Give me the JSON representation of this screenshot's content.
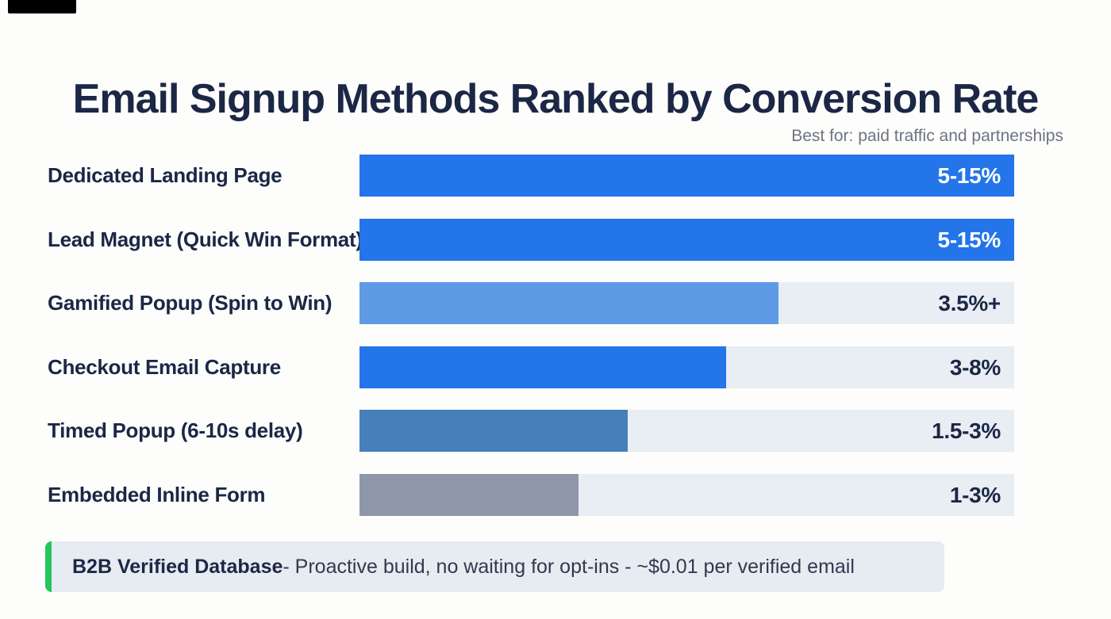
{
  "page": {
    "title": "Email Signup Methods Ranked by Conversion Rate",
    "annotation": "Best for: paid traffic and partnerships"
  },
  "chart_data": {
    "type": "bar",
    "orientation": "horizontal",
    "title": "Email Signup Methods Ranked by Conversion Rate",
    "annotation_top_right": "Best for: paid traffic and partnerships",
    "axes": "none",
    "grid": false,
    "legend": false,
    "track_color": "#e9edf4",
    "categories": [
      "Dedicated Landing Page",
      "Lead Magnet (Quick Win Format)",
      "Gamified Popup (Spin to Win)",
      "Checkout Email Capture",
      "Timed Popup (6-10s delay)",
      "Embedded Inline Form"
    ],
    "value_labels": [
      "5-15%",
      "5-15%",
      "3.5%+",
      "3-8%",
      "1.5-3%",
      "1-3%"
    ],
    "fill_fractions": [
      1.0,
      1.0,
      0.64,
      0.56,
      0.41,
      0.335
    ],
    "bar_colors": [
      "#2474ea",
      "#2474ea",
      "#5f9ae6",
      "#2474ea",
      "#4580ba",
      "#8e97aa"
    ],
    "rows": [
      {
        "label": "Dedicated Landing Page",
        "value": "5-15%",
        "fill_fraction": 1.0,
        "color": "#2474ea",
        "value_color": "#ffffff"
      },
      {
        "label": "Lead Magnet (Quick Win Format)",
        "value": "5-15%",
        "fill_fraction": 1.0,
        "color": "#2474ea",
        "value_color": "#ffffff"
      },
      {
        "label": "Gamified Popup (Spin to Win)",
        "value": "3.5%+",
        "fill_fraction": 0.64,
        "color": "#5f9ae6",
        "value_color": "#1b2745"
      },
      {
        "label": "Checkout Email Capture",
        "value": "3-8%",
        "fill_fraction": 0.56,
        "color": "#2474ea",
        "value_color": "#1b2745"
      },
      {
        "label": "Timed Popup (6-10s delay)",
        "value": "1.5-3%",
        "fill_fraction": 0.41,
        "color": "#4580ba",
        "value_color": "#1b2745"
      },
      {
        "label": "Embedded Inline Form",
        "value": "1-3%",
        "fill_fraction": 0.335,
        "color": "#8e97aa",
        "value_color": "#1b2745"
      }
    ]
  },
  "footer": {
    "highlight": "B2B Verified Database",
    "text": " - Proactive build, no waiting for opt-ins - ~$0.01 per verified email",
    "accent_color": "#24c45e",
    "background_color": "#e7ebf2"
  }
}
